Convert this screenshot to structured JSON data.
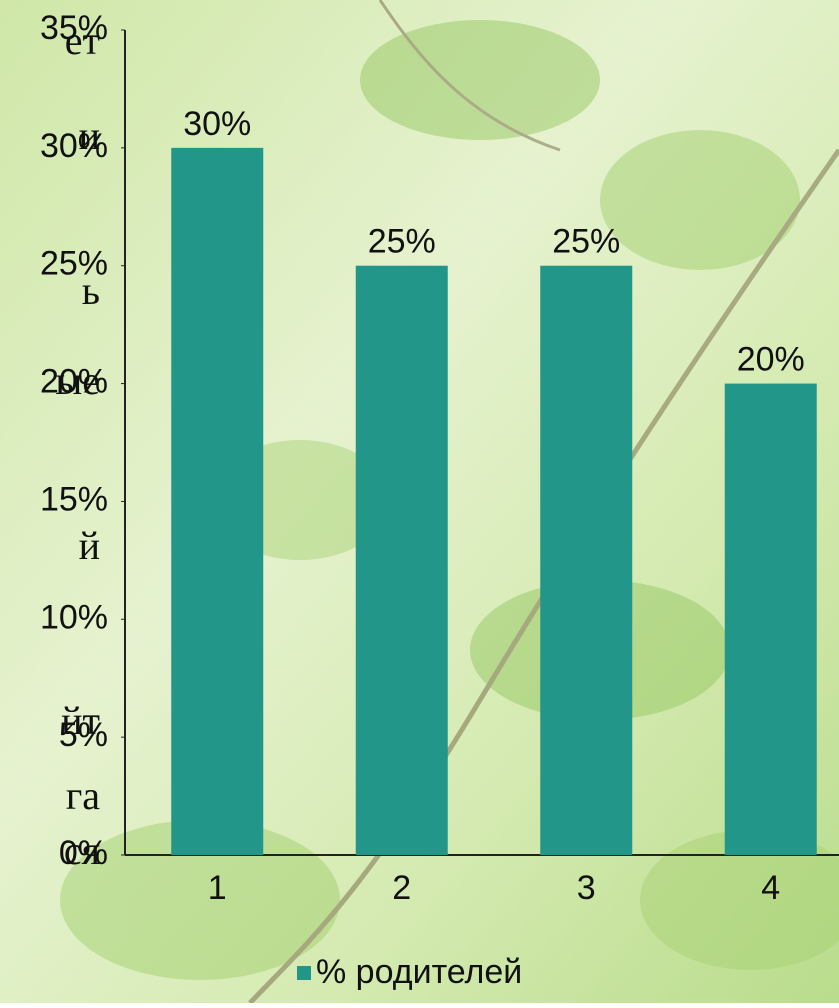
{
  "chart_data": {
    "type": "bar",
    "categories": [
      "1",
      "2",
      "3",
      "4"
    ],
    "series": [
      {
        "name": "% родителей",
        "color": "#23968a",
        "values": [
          30,
          25,
          25,
          20
        ],
        "value_labels": [
          "30%",
          "25%",
          "25%",
          "20%"
        ]
      }
    ],
    "ylim": [
      0,
      35
    ],
    "yticks": [
      {
        "value": 0,
        "label": "0%"
      },
      {
        "value": 5,
        "label": "5%"
      },
      {
        "value": 10,
        "label": "10%"
      },
      {
        "value": 15,
        "label": "15%"
      },
      {
        "value": 20,
        "label": "20%"
      },
      {
        "value": 25,
        "label": "25%"
      },
      {
        "value": 30,
        "label": "30%"
      },
      {
        "value": 35,
        "label": "35%"
      }
    ],
    "grid": false,
    "legend": "bottom"
  },
  "background_text": [
    "ет",
    "и",
    "ь",
    "ые",
    "й",
    "йт",
    "га",
    "ся"
  ]
}
